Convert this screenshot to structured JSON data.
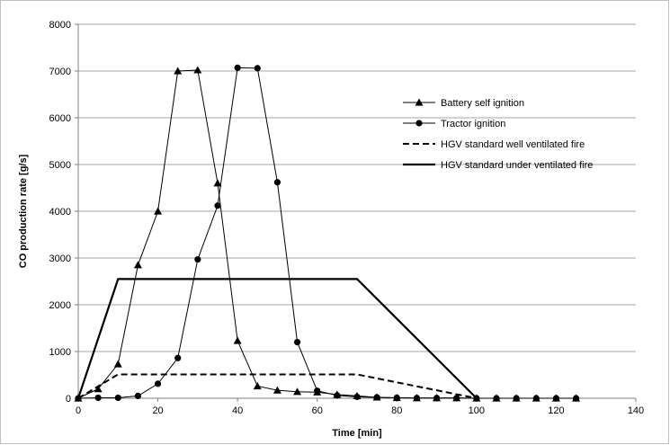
{
  "chart_data": {
    "type": "line",
    "title": "",
    "xlabel": "Time [min]",
    "ylabel": "CO production rate [g/s]",
    "xlim": [
      0,
      140
    ],
    "ylim": [
      0,
      8000
    ],
    "xticks": [
      0,
      20,
      40,
      60,
      80,
      100,
      120,
      140
    ],
    "yticks": [
      0,
      1000,
      2000,
      3000,
      4000,
      5000,
      6000,
      7000,
      8000
    ],
    "grid": "horizontal",
    "legend_position": "right",
    "series": [
      {
        "name": "Battery self ignition",
        "marker": "triangle",
        "line": "solid",
        "color": "#000000",
        "points": [
          [
            0,
            0
          ],
          [
            5,
            200
          ],
          [
            10,
            730
          ],
          [
            15,
            2850
          ],
          [
            20,
            4000
          ],
          [
            25,
            7000
          ],
          [
            30,
            7020
          ],
          [
            35,
            4600
          ],
          [
            40,
            1230
          ],
          [
            45,
            260
          ],
          [
            50,
            170
          ],
          [
            55,
            140
          ],
          [
            60,
            130
          ],
          [
            65,
            80
          ],
          [
            70,
            50
          ],
          [
            75,
            20
          ],
          [
            80,
            10
          ],
          [
            85,
            5
          ],
          [
            90,
            5
          ],
          [
            95,
            5
          ],
          [
            100,
            0
          ],
          [
            105,
            0
          ],
          [
            110,
            0
          ],
          [
            115,
            0
          ],
          [
            120,
            0
          ],
          [
            125,
            0
          ]
        ]
      },
      {
        "name": "Tractor ignition",
        "marker": "circle",
        "line": "solid",
        "color": "#000000",
        "points": [
          [
            0,
            0
          ],
          [
            5,
            10
          ],
          [
            10,
            10
          ],
          [
            15,
            50
          ],
          [
            20,
            310
          ],
          [
            25,
            860
          ],
          [
            30,
            2970
          ],
          [
            35,
            4120
          ],
          [
            40,
            7070
          ],
          [
            45,
            7060
          ],
          [
            50,
            4620
          ],
          [
            55,
            1200
          ],
          [
            60,
            160
          ],
          [
            65,
            60
          ],
          [
            70,
            30
          ],
          [
            75,
            20
          ],
          [
            80,
            10
          ],
          [
            85,
            5
          ],
          [
            90,
            5
          ],
          [
            95,
            5
          ],
          [
            100,
            0
          ],
          [
            105,
            0
          ],
          [
            110,
            0
          ],
          [
            115,
            0
          ],
          [
            120,
            0
          ],
          [
            125,
            0
          ]
        ]
      },
      {
        "name": "HGV standard well ventilated fire",
        "marker": "none",
        "line": "dashed",
        "color": "#000000",
        "points": [
          [
            0,
            0
          ],
          [
            10,
            510
          ],
          [
            70,
            510
          ],
          [
            100,
            0
          ]
        ]
      },
      {
        "name": "HGV standard under ventilated fire",
        "marker": "none",
        "line": "solid-bold",
        "color": "#000000",
        "points": [
          [
            0,
            0
          ],
          [
            10,
            2550
          ],
          [
            70,
            2550
          ],
          [
            100,
            0
          ]
        ]
      }
    ]
  }
}
